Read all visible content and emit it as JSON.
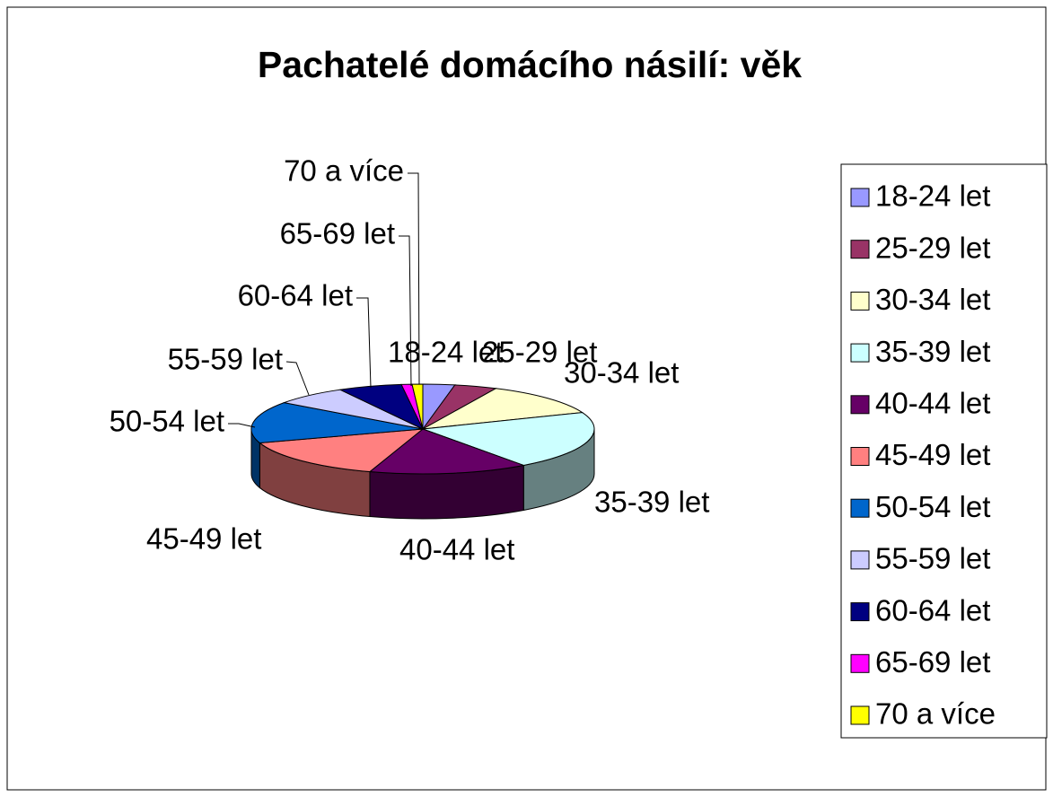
{
  "chart_data": {
    "type": "pie",
    "title": "Pachatelé domácího násilí: věk",
    "categories": [
      "18-24 let",
      "25-29 let",
      "30-34 let",
      "35-39 let",
      "40-44 let",
      "45-49 let",
      "50-54 let",
      "55-59 let",
      "60-64 let",
      "65-69 let",
      "70 a více"
    ],
    "values": [
      3,
      4,
      12,
      21,
      15,
      15,
      15,
      7,
      6,
      1,
      1
    ],
    "colors": [
      "#9999ff",
      "#993366",
      "#ffffcc",
      "#ccffff",
      "#660066",
      "#ff8080",
      "#0066cc",
      "#ccccff",
      "#000080",
      "#ff00ff",
      "#ffff00"
    ],
    "legend": "right"
  }
}
